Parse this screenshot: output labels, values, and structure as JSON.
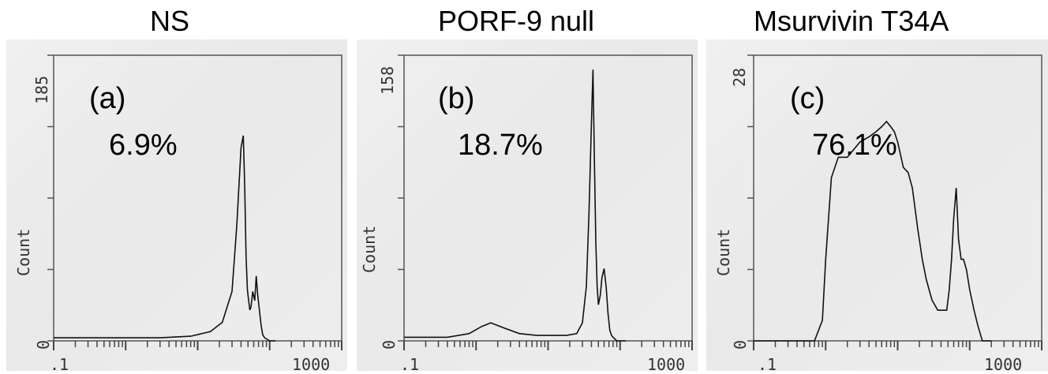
{
  "chart_data": [
    {
      "type": "line",
      "title": "NS",
      "panel_label": "(a)",
      "annotation": "6.9%",
      "ylabel": "Count",
      "xlabel": "",
      "xscale": "log",
      "xlim": [
        0.1,
        1000
      ],
      "xtick_labels": [
        ".1",
        "1000"
      ],
      "ylim": [
        0,
        185
      ],
      "ytick_labels": [
        "0",
        "185"
      ],
      "series": [
        {
          "x": [
            0.1,
            0.3,
            1,
            3,
            8,
            15,
            22,
            30,
            35,
            40,
            43,
            45,
            47,
            49,
            51,
            53,
            55,
            58,
            62,
            65,
            68,
            72,
            76,
            80,
            85,
            92,
            100,
            110,
            120
          ],
          "y": [
            2,
            2,
            2,
            2,
            3,
            6,
            12,
            32,
            75,
            125,
            133,
            100,
            55,
            33,
            26,
            20,
            22,
            32,
            26,
            42,
            30,
            20,
            10,
            4,
            2,
            1,
            0,
            0,
            0
          ]
        }
      ]
    },
    {
      "type": "line",
      "title": "PORF-9 null",
      "panel_label": "(b)",
      "annotation": "18.7%",
      "ylabel": "Count",
      "xlabel": "",
      "xscale": "log",
      "xlim": [
        0.1,
        1000
      ],
      "xtick_labels": [
        ".1",
        "1000"
      ],
      "ylim": [
        0,
        158
      ],
      "ytick_labels": [
        "0",
        "158"
      ],
      "series": [
        {
          "x": [
            0.1,
            0.4,
            0.8,
            1.2,
            1.6,
            2.5,
            4,
            7,
            12,
            18,
            25,
            30,
            34,
            37,
            40,
            42,
            44,
            46,
            48,
            50,
            53,
            56,
            60,
            64,
            68,
            72,
            76,
            80,
            90,
            100,
            120
          ],
          "y": [
            2,
            2,
            4,
            8,
            10,
            7,
            4,
            3,
            3,
            3,
            4,
            10,
            30,
            70,
            120,
            150,
            100,
            55,
            30,
            20,
            25,
            35,
            40,
            30,
            15,
            6,
            3,
            2,
            0,
            0,
            0
          ]
        }
      ]
    },
    {
      "type": "line",
      "title": "Msurvivin T34A",
      "panel_label": "(c)",
      "annotation": "76.1%",
      "ylabel": "Count",
      "xlabel": "",
      "xscale": "log",
      "xlim": [
        0.1,
        1000
      ],
      "xtick_labels": [
        ".1",
        "1000"
      ],
      "ylim": [
        0,
        28
      ],
      "ytick_labels": [
        "0",
        "28"
      ],
      "series": [
        {
          "x": [
            0.1,
            0.4,
            0.7,
            0.9,
            1.0,
            1.2,
            1.5,
            2,
            3,
            4,
            5,
            6,
            7,
            8,
            9,
            10,
            12,
            14,
            16,
            19,
            22,
            25,
            30,
            36,
            42,
            48,
            52,
            56,
            60,
            65,
            70,
            76,
            82,
            90,
            100,
            115,
            130,
            150,
            170,
            200
          ],
          "y": [
            0,
            0,
            0,
            2,
            8,
            16,
            18,
            18,
            19.5,
            20,
            20.5,
            21,
            21.5,
            21,
            20.5,
            19.5,
            17,
            16.5,
            15,
            11,
            8,
            6,
            4,
            3,
            3,
            3,
            5,
            8,
            12,
            15,
            10,
            8,
            8,
            7,
            5,
            3,
            1.5,
            0,
            0,
            0
          ]
        }
      ]
    }
  ]
}
